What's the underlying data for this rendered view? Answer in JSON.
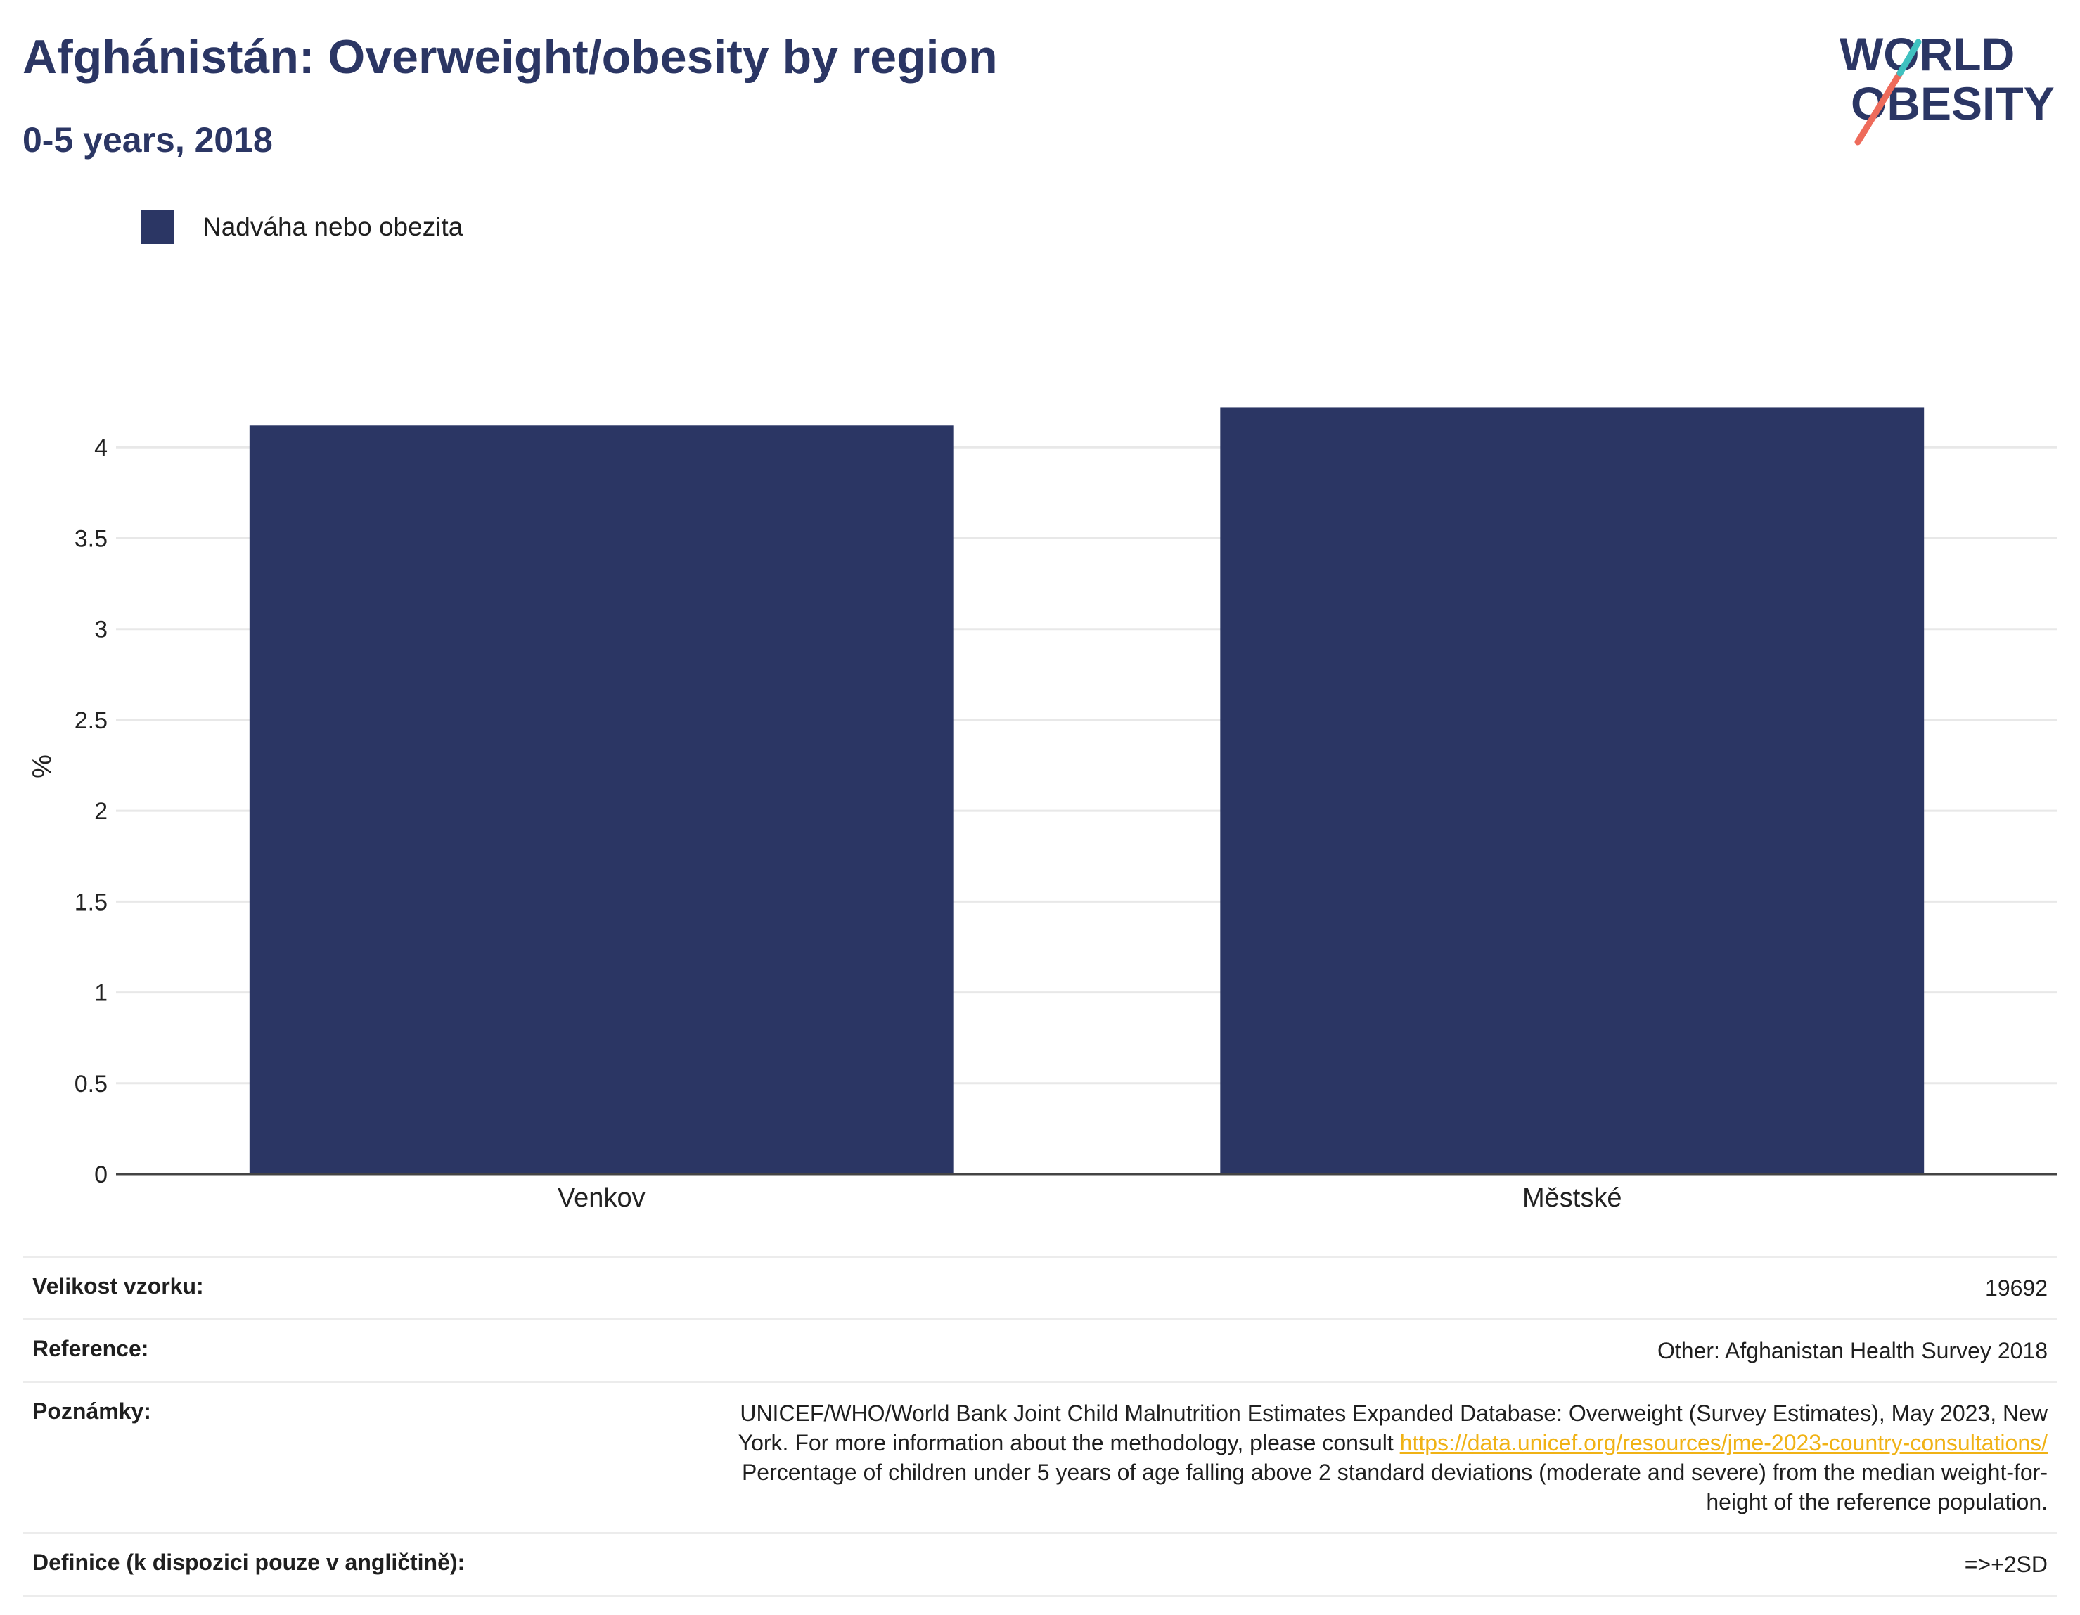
{
  "header": {
    "title": "Afghánistán: Overweight/obesity by region",
    "subtitle": "0-5 years, 2018"
  },
  "logo": {
    "line1": "WORLD",
    "line2": "OBESITY",
    "colors": {
      "text": "#2b3664",
      "slash_top": "#3fc1c0",
      "slash_bottom": "#ee6b5b"
    }
  },
  "colors": {
    "bar": "#2b3664",
    "grid": "#e8e8e8",
    "axis": "#444444"
  },
  "chart_data": {
    "type": "bar",
    "categories": [
      "Venkov",
      "Městské"
    ],
    "series": [
      {
        "name": "Nadváha nebo obezita",
        "values": [
          4.12,
          4.22
        ]
      }
    ],
    "ylabel": "%",
    "ylim": [
      0,
      4.45
    ],
    "yticks": [
      0,
      0.5,
      1,
      1.5,
      2,
      2.5,
      3,
      3.5,
      4
    ],
    "ytick_labels": [
      "0",
      "0.5",
      "1",
      "1.5",
      "2",
      "2.5",
      "3",
      "3.5",
      "4"
    ],
    "grid": true,
    "legend_position": "top-left"
  },
  "info": {
    "sample_size_label": "Velikost vzorku:",
    "sample_size_value": "19692",
    "reference_label": "Reference:",
    "reference_value": "Other: Afghanistan Health Survey 2018",
    "notes_label": "Poznámky:",
    "notes_line1": "UNICEF/WHO/World Bank Joint Child Malnutrition Estimates Expanded Database: Overweight (Survey Estimates), May 2023, New",
    "notes_line2_prefix": "York. For more information about the methodology, please consult",
    "notes_link": "https://data.unicef.org/resources/jme-2023-country-consultations/",
    "notes_line3": "Percentage of children under 5 years of age falling above 2 standard deviations (moderate and severe) from the median weight-for-",
    "notes_line4": "height of the reference population.",
    "definition_label": "Definice (k dispozici pouze v angličtině):",
    "definition_value": "=>+2SD"
  }
}
